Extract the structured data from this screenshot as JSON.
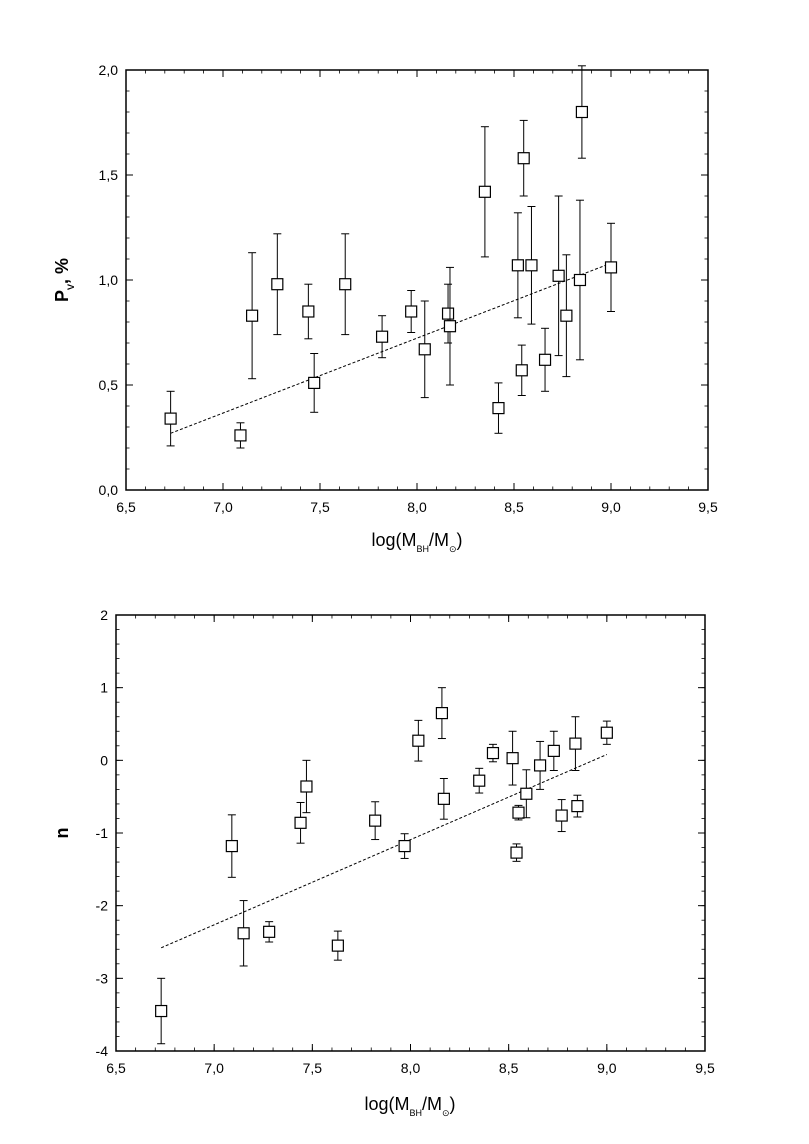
{
  "chart_data": [
    {
      "type": "scatter",
      "title": "",
      "xlabel": "log(M_BH/M_⊙)",
      "xlabel_main": "log(M",
      "xlabel_sub1": "BH",
      "xlabel_mid": "/M",
      "xlabel_sub2": "⊙",
      "xlabel_end": ")",
      "ylabel": "P_V, %",
      "ylabel_main": "P",
      "ylabel_sub": "V",
      "ylabel_end": ", %",
      "xlim": [
        6.5,
        9.5
      ],
      "ylim": [
        0.0,
        2.0
      ],
      "xticks": [
        "6,5",
        "7,0",
        "7,5",
        "8,0",
        "8,5",
        "9,0",
        "9,5"
      ],
      "yticks": [
        "0,0",
        "0,5",
        "1,0",
        "1,5",
        "2,0"
      ],
      "xtick_values": [
        6.5,
        7.0,
        7.5,
        8.0,
        8.5,
        9.0,
        9.5
      ],
      "ytick_values": [
        0.0,
        0.5,
        1.0,
        1.5,
        2.0
      ],
      "grid": false,
      "series": [
        {
          "marker": "open-square",
          "points": [
            {
              "x": 6.73,
              "y": 0.34,
              "err": 0.13
            },
            {
              "x": 7.09,
              "y": 0.26,
              "err": 0.06
            },
            {
              "x": 7.15,
              "y": 0.83,
              "err": 0.3
            },
            {
              "x": 7.28,
              "y": 0.98,
              "err": 0.24
            },
            {
              "x": 7.44,
              "y": 0.85,
              "err": 0.13
            },
            {
              "x": 7.47,
              "y": 0.51,
              "err": 0.14
            },
            {
              "x": 7.63,
              "y": 0.98,
              "err": 0.24
            },
            {
              "x": 7.82,
              "y": 0.73,
              "err": 0.1
            },
            {
              "x": 7.97,
              "y": 0.85,
              "err": 0.1
            },
            {
              "x": 8.04,
              "y": 0.67,
              "err": 0.23
            },
            {
              "x": 8.16,
              "y": 0.84,
              "err": 0.14
            },
            {
              "x": 8.17,
              "y": 0.78,
              "err": 0.28
            },
            {
              "x": 8.35,
              "y": 1.42,
              "err": 0.31
            },
            {
              "x": 8.42,
              "y": 0.39,
              "err": 0.12
            },
            {
              "x": 8.52,
              "y": 1.07,
              "err": 0.25
            },
            {
              "x": 8.54,
              "y": 0.57,
              "err": 0.12
            },
            {
              "x": 8.55,
              "y": 1.58,
              "err": 0.18
            },
            {
              "x": 8.59,
              "y": 1.07,
              "err": 0.28
            },
            {
              "x": 8.66,
              "y": 0.62,
              "err": 0.15
            },
            {
              "x": 8.73,
              "y": 1.02,
              "err": 0.38
            },
            {
              "x": 8.77,
              "y": 0.83,
              "err": 0.29
            },
            {
              "x": 8.84,
              "y": 1.0,
              "err": 0.38
            },
            {
              "x": 8.85,
              "y": 1.8,
              "err": 0.22
            },
            {
              "x": 9.0,
              "y": 1.06,
              "err": 0.21
            }
          ]
        }
      ],
      "fit_line": {
        "style": "dashed",
        "x": [
          6.73,
          9.0
        ],
        "y": [
          0.27,
          1.08
        ]
      }
    },
    {
      "type": "scatter",
      "title": "",
      "xlabel": "log(M_BH/M_⊙)",
      "xlabel_main": "log(M",
      "xlabel_sub1": "BH",
      "xlabel_mid": "/M",
      "xlabel_sub2": "⊙",
      "xlabel_end": ")",
      "ylabel": "n",
      "xlim": [
        6.5,
        9.5
      ],
      "ylim": [
        -4,
        2
      ],
      "xticks": [
        "6,5",
        "7,0",
        "7,5",
        "8,0",
        "8,5",
        "9,0",
        "9,5"
      ],
      "yticks": [
        "-4",
        "-3",
        "-2",
        "-1",
        "0",
        "1",
        "2"
      ],
      "xtick_values": [
        6.5,
        7.0,
        7.5,
        8.0,
        8.5,
        9.0,
        9.5
      ],
      "ytick_values": [
        -4,
        -3,
        -2,
        -1,
        0,
        1,
        2
      ],
      "grid": false,
      "series": [
        {
          "marker": "open-square",
          "points": [
            {
              "x": 6.73,
              "y": -3.45,
              "err": 0.45
            },
            {
              "x": 7.09,
              "y": -1.18,
              "err": 0.43
            },
            {
              "x": 7.15,
              "y": -2.38,
              "err": 0.45
            },
            {
              "x": 7.28,
              "y": -2.36,
              "err": 0.14
            },
            {
              "x": 7.44,
              "y": -0.86,
              "err": 0.28
            },
            {
              "x": 7.47,
              "y": -0.36,
              "err": 0.36
            },
            {
              "x": 7.63,
              "y": -2.55,
              "err": 0.2
            },
            {
              "x": 7.82,
              "y": -0.83,
              "err": 0.26
            },
            {
              "x": 7.97,
              "y": -1.18,
              "err": 0.17
            },
            {
              "x": 8.04,
              "y": 0.27,
              "err": 0.28
            },
            {
              "x": 8.16,
              "y": 0.65,
              "err": 0.35
            },
            {
              "x": 8.17,
              "y": -0.53,
              "err": 0.28
            },
            {
              "x": 8.35,
              "y": -0.28,
              "err": 0.17
            },
            {
              "x": 8.42,
              "y": 0.1,
              "err": 0.12
            },
            {
              "x": 8.52,
              "y": 0.03,
              "err": 0.37
            },
            {
              "x": 8.54,
              "y": -1.27,
              "err": 0.12
            },
            {
              "x": 8.55,
              "y": -0.72,
              "err": 0.1
            },
            {
              "x": 8.59,
              "y": -0.46,
              "err": 0.33
            },
            {
              "x": 8.66,
              "y": -0.07,
              "err": 0.33
            },
            {
              "x": 8.73,
              "y": 0.13,
              "err": 0.27
            },
            {
              "x": 8.77,
              "y": -0.76,
              "err": 0.22
            },
            {
              "x": 8.84,
              "y": 0.23,
              "err": 0.37
            },
            {
              "x": 8.85,
              "y": -0.63,
              "err": 0.15
            },
            {
              "x": 9.0,
              "y": 0.38,
              "err": 0.16
            }
          ]
        }
      ],
      "fit_line": {
        "style": "dashed",
        "x": [
          6.73,
          9.0
        ],
        "y": [
          -2.58,
          0.08
        ]
      }
    }
  ]
}
